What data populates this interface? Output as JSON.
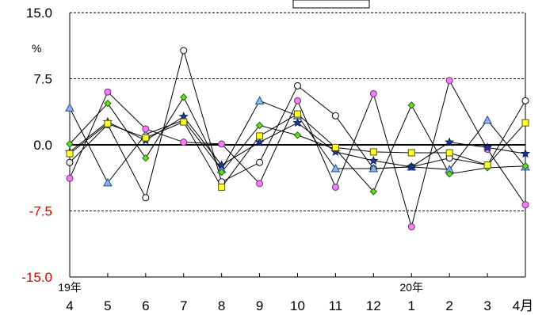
{
  "chart_data": {
    "type": "line",
    "title": "",
    "y_unit": "%",
    "ylim": [
      -15,
      15
    ],
    "y_ticks": [
      15.0,
      7.5,
      0.0,
      -7.5,
      -15.0
    ],
    "y_tick_labels": [
      "15.0",
      "7.5",
      "0.0",
      "-7.5",
      "-15.0"
    ],
    "y_tick_colors": [
      "#000000",
      "#000000",
      "#000000",
      "#e00000",
      "#e00000"
    ],
    "gridlines_dashed": [
      15.0,
      7.5,
      -7.5
    ],
    "zero_line": true,
    "categories": [
      "4",
      "5",
      "6",
      "7",
      "8",
      "9",
      "10",
      "11",
      "12",
      "1",
      "2",
      "3",
      "4月"
    ],
    "year_labels": [
      {
        "label": "19年",
        "at": "4"
      },
      {
        "label": "20年",
        "at": "1"
      }
    ],
    "series": [
      {
        "marker": "circle-open",
        "fill": "#ffffff",
        "stroke": "#000000",
        "values": [
          -2.0,
          2.3,
          -6.0,
          10.7,
          -4.2,
          -2.0,
          6.7,
          3.3,
          -2.7,
          -2.5,
          -1.5,
          -2.3,
          5.0
        ]
      },
      {
        "marker": "triangle",
        "fill": "#8db4e2",
        "stroke": "#1f4e9a",
        "values": [
          4.2,
          -4.3,
          1.2,
          2.8,
          -2.8,
          5.0,
          3.3,
          -2.7,
          -2.7,
          -2.5,
          -2.8,
          2.8,
          -2.5
        ]
      },
      {
        "marker": "circle",
        "fill": "#ee82ee",
        "stroke": "#7a2a7a",
        "values": [
          -3.8,
          6.0,
          1.8,
          0.3,
          0.1,
          -4.4,
          5.0,
          -4.8,
          5.8,
          -9.3,
          7.3,
          -0.5,
          -6.8
        ]
      },
      {
        "marker": "diamond",
        "fill": "#66dd22",
        "stroke": "#226611",
        "values": [
          0.1,
          4.7,
          -1.5,
          5.4,
          -3.1,
          2.2,
          1.1,
          -0.5,
          -5.3,
          4.5,
          -3.3,
          -2.6,
          -2.4
        ]
      },
      {
        "marker": "star",
        "fill": "#1f3a93",
        "stroke": "#0b1c5c",
        "values": [
          -0.8,
          2.6,
          0.5,
          3.2,
          -2.3,
          0.3,
          2.5,
          -0.8,
          -1.8,
          -2.5,
          0.3,
          -0.3,
          -1.0
        ]
      },
      {
        "marker": "square",
        "fill": "#ffff33",
        "stroke": "#555500",
        "values": [
          -1.0,
          2.4,
          0.8,
          2.6,
          -4.8,
          1.0,
          3.5,
          -0.3,
          -0.8,
          -0.9,
          -0.9,
          -2.3,
          2.5
        ]
      }
    ]
  }
}
